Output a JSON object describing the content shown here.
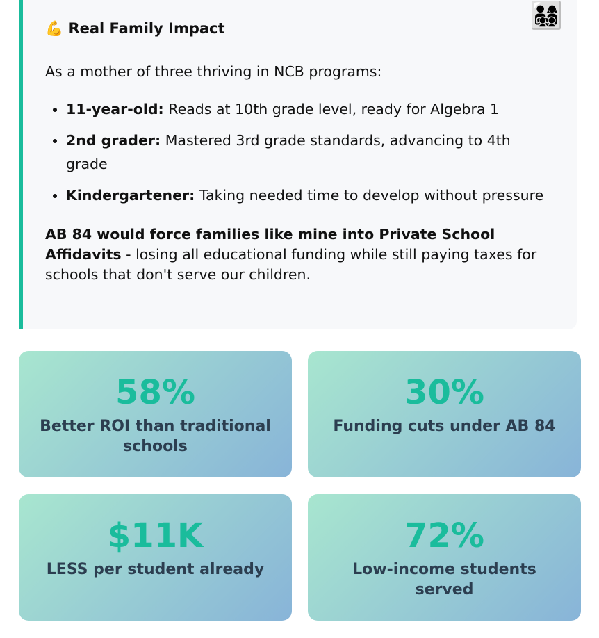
{
  "card": {
    "icon": "💪",
    "title": "Real Family Impact",
    "corner_icon": "👨‍👩‍👧‍👦",
    "intro": "As a mother of three thriving in NCB programs:",
    "items": [
      {
        "label": "11-year-old:",
        "text": "Reads at 10th grade level, ready for Algebra 1"
      },
      {
        "label": "2nd grader:",
        "text": "Mastered 3rd grade standards, advancing to 4th grade"
      },
      {
        "label": "Kindergartener:",
        "text": "Taking needed time to develop without pressure"
      }
    ],
    "closing": {
      "bold": "AB 84 would force families like mine into Private School Affidavits",
      "text": " - losing all educational funding while still paying taxes for schools that don't serve our children."
    }
  },
  "stats": [
    {
      "value": "58%",
      "label": "Better ROI than traditional schools"
    },
    {
      "value": "30%",
      "label": "Funding cuts under AB 84"
    },
    {
      "value": "$11K",
      "label": "LESS per student already"
    },
    {
      "value": "72%",
      "label": "Low-income students served"
    }
  ]
}
